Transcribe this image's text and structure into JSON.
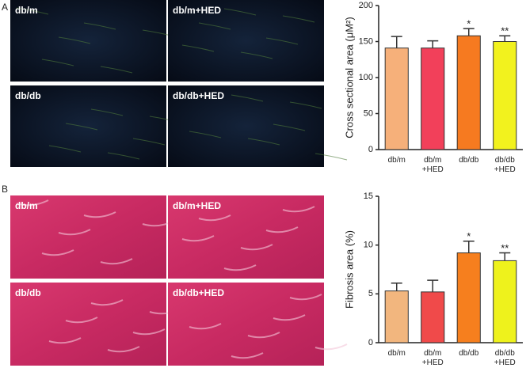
{
  "panels": [
    {
      "label": "A",
      "images": [
        "db/m",
        "db/m+HED",
        "db/db",
        "db/db+HED"
      ]
    },
    {
      "label": "B",
      "images": [
        "db/m",
        "db/m+HED",
        "db/db",
        "db/db+HED"
      ]
    }
  ],
  "chart_data": [
    {
      "type": "bar",
      "y_label": "Cross sectional area (μM²)",
      "categories": [
        "db/m",
        "db/m\n+HED",
        "db/db",
        "db/db\n+HED"
      ],
      "values": [
        141,
        141,
        158,
        150
      ],
      "errors": [
        16,
        10,
        10,
        8
      ],
      "colors": [
        "#f6b07a",
        "#f2405a",
        "#f67a20",
        "#f2f21e"
      ],
      "annotations": [
        {
          "index": 2,
          "text": "*"
        },
        {
          "index": 3,
          "text": "**"
        }
      ],
      "ylim": [
        0,
        200
      ],
      "yticks": [
        0,
        50,
        100,
        150,
        200
      ]
    },
    {
      "type": "bar",
      "y_label": "Fibrosis area (%)",
      "categories": [
        "db/m",
        "db/m\n+HED",
        "db/db",
        "db/db\n+HED"
      ],
      "values": [
        5.3,
        5.2,
        9.2,
        8.4
      ],
      "errors": [
        0.8,
        1.2,
        1.2,
        0.8
      ],
      "colors": [
        "#f2b67e",
        "#f04a4a",
        "#f67f1e",
        "#eef21c"
      ],
      "annotations": [
        {
          "index": 2,
          "text": "*"
        },
        {
          "index": 3,
          "text": "**"
        }
      ],
      "ylim": [
        0,
        15
      ],
      "yticks": [
        0,
        5,
        10,
        15
      ]
    }
  ]
}
